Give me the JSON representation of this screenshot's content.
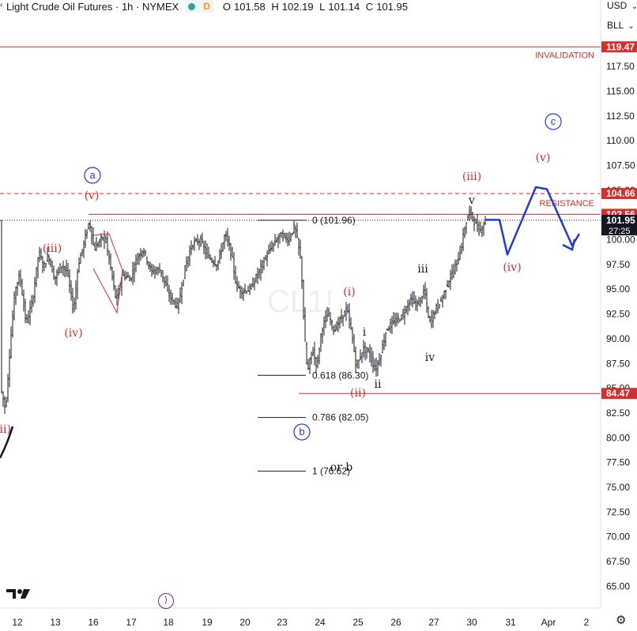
{
  "legend": {
    "symbol": "Light Crude Oil Futures · 1h · NYMEX",
    "badge": "D",
    "open_label": "O",
    "open": "101.58",
    "high_label": "H",
    "high": "102.19",
    "low_label": "L",
    "low": "101.14",
    "close_label": "C",
    "close": "101.95"
  },
  "axis_top": {
    "currency": "USD",
    "currency_arrow": "⌄",
    "unit": "BLL",
    "unit_arrow": "⌄"
  },
  "chart_data": {
    "type": "candlestick",
    "y_axis": {
      "ylim": [
        62.5,
        122.5
      ],
      "ticks": [
        65.0,
        67.5,
        70.0,
        72.5,
        75.0,
        77.5,
        80.0,
        82.5,
        85.0,
        87.5,
        90.0,
        92.5,
        95.0,
        97.5,
        100.0,
        102.5,
        105.0,
        107.5,
        110.0,
        112.5,
        115.0,
        117.5
      ]
    },
    "x_axis": {
      "tick_labels": [
        "12",
        "13",
        "16",
        "17",
        "18",
        "19",
        "20",
        "23",
        "24",
        "25",
        "26",
        "27",
        "30",
        "31",
        "Apr",
        "2"
      ]
    },
    "price_labels": [
      {
        "text": "119.47",
        "value": 119.47,
        "color": "#d32f2f"
      },
      {
        "text": "104.66",
        "value": 104.66,
        "color": "#d32f2f"
      },
      {
        "text": "102.56",
        "value": 102.56,
        "color": "#d32f2f"
      },
      {
        "text": "101.95",
        "value": 101.95,
        "color": "#131722",
        "countdown": "27:25"
      },
      {
        "text": "84.47",
        "value": 84.47,
        "color": "#d32f2f"
      }
    ],
    "levels": [
      {
        "name": "invalidation",
        "value": 119.47,
        "label": "INVALIDATION",
        "style": "solid",
        "color": "#d32f2f"
      },
      {
        "name": "resistance-top",
        "value": 104.66,
        "label": "RESISTANCE",
        "style": "dashed",
        "color": "#d32f2f"
      },
      {
        "name": "resistance-bottom",
        "value": 102.56,
        "label": "",
        "style": "solid",
        "color": "#d32f2f"
      },
      {
        "name": "support",
        "value": 84.47,
        "label": "",
        "style": "solid",
        "color": "#d32f2f"
      }
    ],
    "fibonacci": [
      {
        "label": "0 (101.96)",
        "value": 101.96
      },
      {
        "label": "0.618 (86.30)",
        "value": 86.3
      },
      {
        "label": "0.786 (82.05)",
        "value": 82.05
      },
      {
        "label": "1 (76.62)",
        "value": 76.62
      }
    ],
    "wave_labels": [
      {
        "text": "(ii)",
        "color": "red",
        "circle": false
      },
      {
        "text": "(iii)",
        "color": "red",
        "circle": false
      },
      {
        "text": "(iv)",
        "color": "red",
        "circle": false
      },
      {
        "text": "(v)",
        "color": "red",
        "circle": false
      },
      {
        "text": "a",
        "color": "blue",
        "circle": true
      },
      {
        "text": "b",
        "color": "blue",
        "circle": true
      },
      {
        "text": "(i)",
        "color": "red",
        "circle": false
      },
      {
        "text": "(ii)",
        "color": "red",
        "circle": false
      },
      {
        "text": "i",
        "color": "black",
        "circle": false
      },
      {
        "text": "ii",
        "color": "black",
        "circle": false
      },
      {
        "text": "iii",
        "color": "black",
        "circle": false
      },
      {
        "text": "iv",
        "color": "black",
        "circle": false
      },
      {
        "text": "v",
        "color": "black",
        "circle": false
      },
      {
        "text": "(iii)",
        "color": "red",
        "circle": false
      },
      {
        "text": "(iv)",
        "color": "red",
        "circle": false
      },
      {
        "text": "(v)",
        "color": "red",
        "circle": false
      },
      {
        "text": "c",
        "color": "blue",
        "circle": true
      },
      {
        "text": "or b",
        "color": "black",
        "circle": false
      }
    ],
    "watermark": "CL1!",
    "projection_path": [
      102.0,
      102.0,
      98.5,
      105.3,
      105.1,
      99.4,
      100.6
    ],
    "colors": {
      "up": "#131722",
      "down": "#131722",
      "projection": "#1e3adb",
      "red": "#d32f2f",
      "blue": "#1e3adb"
    }
  }
}
